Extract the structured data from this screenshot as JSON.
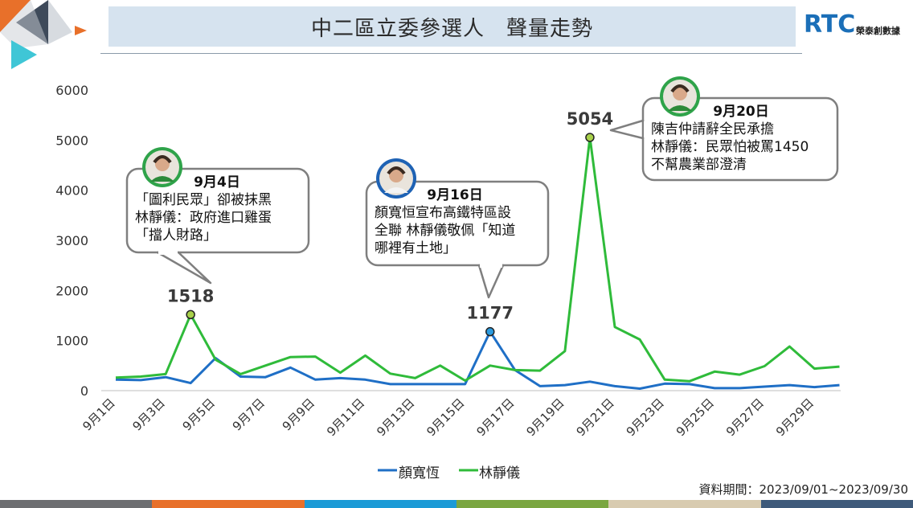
{
  "header": {
    "title": "中二區立委參選人　聲量走勢",
    "logo_text": "RTC",
    "logo_sub": "榮泰創數據"
  },
  "footer": {
    "note": "資料期間：2023/09/01~2023/09/30"
  },
  "colors": {
    "series_blue": "#1f6fc6",
    "series_green": "#2fbb3a",
    "strip": [
      "#6d6e71",
      "#e8702a",
      "#1b9ad6",
      "#7aa640",
      "#d8cbb0",
      "#3e5a7a"
    ]
  },
  "chart_data": {
    "type": "line",
    "ylim": [
      0,
      6000
    ],
    "yticks": [
      0,
      1000,
      2000,
      3000,
      4000,
      5000,
      6000
    ],
    "x": [
      "9月1日",
      "9月2日",
      "9月3日",
      "9月4日",
      "9月5日",
      "9月6日",
      "9月7日",
      "9月8日",
      "9月9日",
      "9月10日",
      "9月11日",
      "9月12日",
      "9月13日",
      "9月14日",
      "9月15日",
      "9月16日",
      "9月17日",
      "9月18日",
      "9月19日",
      "9月20日",
      "9月21日",
      "9月22日",
      "9月23日",
      "9月24日",
      "9月25日",
      "9月26日",
      "9月27日",
      "9月28日",
      "9月29日",
      "9月30日"
    ],
    "xtick_labels": [
      "9月1日",
      "9月3日",
      "9月5日",
      "9月7日",
      "9月9日",
      "9月11日",
      "9月13日",
      "9月15日",
      "9月17日",
      "9月19日",
      "9月21日",
      "9月23日",
      "9月25日",
      "9月27日",
      "9月29日"
    ],
    "series": [
      {
        "name": "顏寬恆",
        "color": "#1f6fc6",
        "values": [
          220,
          210,
          270,
          150,
          650,
          280,
          270,
          460,
          220,
          250,
          220,
          130,
          130,
          130,
          130,
          1177,
          410,
          90,
          110,
          180,
          90,
          40,
          140,
          130,
          50,
          50,
          80,
          110,
          70,
          110
        ]
      },
      {
        "name": "林靜儀",
        "color": "#2fbb3a",
        "values": [
          260,
          280,
          330,
          1518,
          620,
          330,
          500,
          670,
          680,
          360,
          700,
          340,
          250,
          500,
          200,
          500,
          410,
          400,
          790,
          5054,
          1270,
          1020,
          220,
          190,
          380,
          320,
          490,
          880,
          440,
          480
        ]
      }
    ],
    "peaks": [
      {
        "series": 1,
        "index": 3,
        "label": "1518",
        "marker_color": "#a8d04a"
      },
      {
        "series": 0,
        "index": 15,
        "label": "1177",
        "marker_color": "#2b9be0"
      },
      {
        "series": 1,
        "index": 19,
        "label": "5054",
        "marker_color": "#a8d04a"
      }
    ],
    "annotations": [
      {
        "date": "9月4日",
        "lines": [
          "「圖利民眾」卻被抹黑",
          "林靜儀：政府進口雞蛋",
          "「擋人財路」"
        ]
      },
      {
        "date": "9月16日",
        "lines": [
          "顏寬恒宣布高鐵特區設",
          "全聯 林靜儀敬佩「知道",
          "哪裡有土地」"
        ]
      },
      {
        "date": "9月20日",
        "lines": [
          "陳吉仲請辭全民承擔",
          "林靜儀：民眾怕被罵1450",
          "不幫農業部澄清"
        ]
      }
    ]
  }
}
